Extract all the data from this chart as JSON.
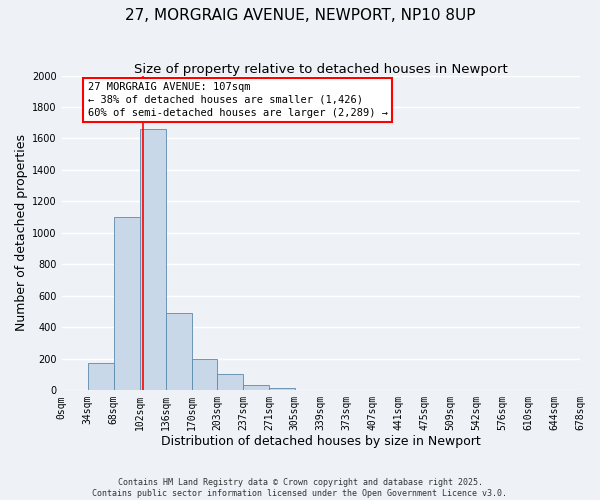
{
  "title": "27, MORGRAIG AVENUE, NEWPORT, NP10 8UP",
  "subtitle": "Size of property relative to detached houses in Newport",
  "xlabel": "Distribution of detached houses by size in Newport",
  "ylabel": "Number of detached properties",
  "bar_values": [
    0,
    175,
    1100,
    1660,
    490,
    200,
    100,
    35,
    15,
    0,
    0,
    0,
    0,
    0,
    0,
    0,
    0,
    0,
    0,
    0
  ],
  "bin_labels": [
    "0sqm",
    "34sqm",
    "68sqm",
    "102sqm",
    "136sqm",
    "170sqm",
    "203sqm",
    "237sqm",
    "271sqm",
    "305sqm",
    "339sqm",
    "373sqm",
    "407sqm",
    "441sqm",
    "475sqm",
    "509sqm",
    "542sqm",
    "576sqm",
    "610sqm",
    "644sqm",
    "678sqm"
  ],
  "bin_edges": [
    0,
    34,
    68,
    102,
    136,
    170,
    203,
    237,
    271,
    305,
    339,
    373,
    407,
    441,
    475,
    509,
    542,
    576,
    610,
    644,
    678
  ],
  "bar_color": "#c8d8e8",
  "bar_edge_color": "#5a8aaa",
  "red_line_x": 107,
  "ylim": [
    0,
    2000
  ],
  "yticks": [
    0,
    200,
    400,
    600,
    800,
    1000,
    1200,
    1400,
    1600,
    1800,
    2000
  ],
  "annotation_line1": "27 MORGRAIG AVENUE: 107sqm",
  "annotation_line2": "← 38% of detached houses are smaller (1,426)",
  "annotation_line3": "60% of semi-detached houses are larger (2,289) →",
  "background_color": "#eef2f7",
  "grid_color": "#ffffff",
  "footer_line1": "Contains HM Land Registry data © Crown copyright and database right 2025.",
  "footer_line2": "Contains public sector information licensed under the Open Government Licence v3.0.",
  "title_fontsize": 11,
  "subtitle_fontsize": 9.5,
  "axis_label_fontsize": 9,
  "tick_fontsize": 7,
  "annotation_fontsize": 7.5
}
